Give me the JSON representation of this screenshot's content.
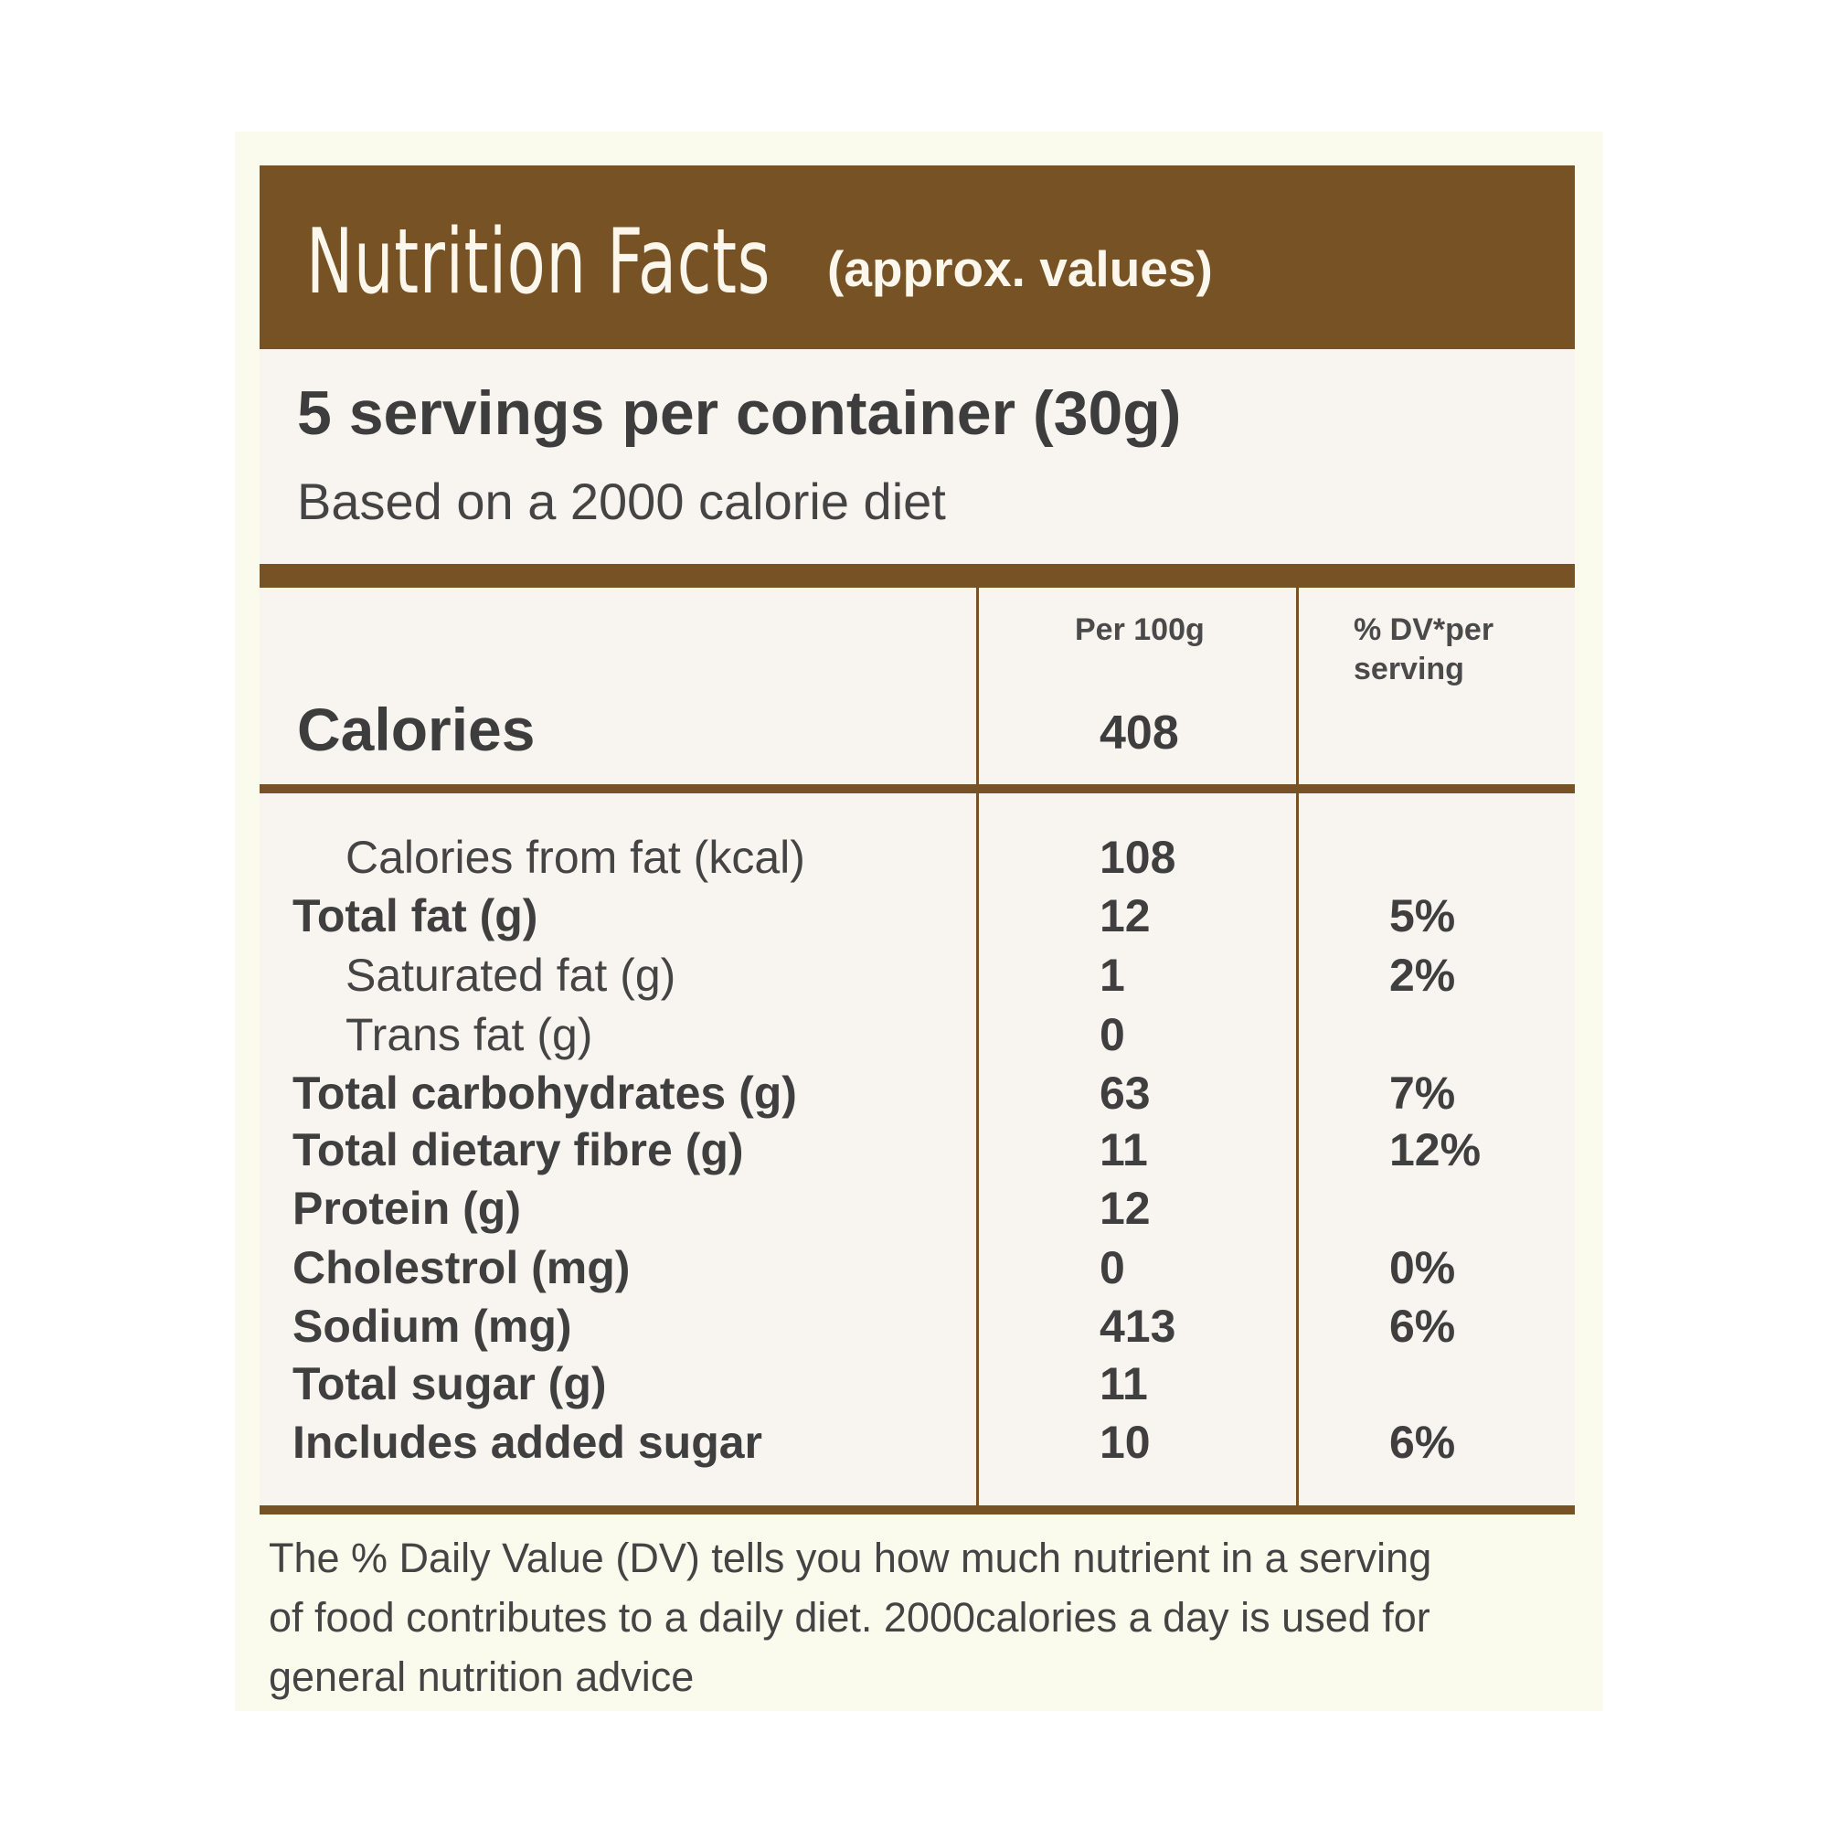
{
  "header": {
    "title": "Nutrition Facts",
    "subtitle": "(approx. values)"
  },
  "servings": "5 servings per container (30g)",
  "basis": "Based on a 2000 calorie diet",
  "columns": {
    "per100g": "Per 100g",
    "dv_line1": "% DV*per",
    "dv_line2": "serving"
  },
  "calories": {
    "label": "Calories",
    "value": "408"
  },
  "rows": [
    {
      "label": "Calories from fat (kcal)",
      "value": "108",
      "dv": "",
      "sub": true
    },
    {
      "label": "Total fat (g)",
      "value": "12",
      "dv": "5%",
      "sub": false
    },
    {
      "label": "Saturated fat (g)",
      "value": "1",
      "dv": "2%",
      "sub": true
    },
    {
      "label": "Trans fat (g)",
      "value": "0",
      "dv": "",
      "sub": true
    },
    {
      "label": "Total carbohydrates (g)",
      "value": "63",
      "dv": "7%",
      "sub": false
    },
    {
      "label": "Total dietary fibre (g)",
      "value": "11",
      "dv": "12%",
      "sub": false
    },
    {
      "label": "Protein (g)",
      "value": "12",
      "dv": "",
      "sub": false
    },
    {
      "label": "Cholestrol (mg)",
      "value": "0",
      "dv": "0%",
      "sub": false
    },
    {
      "label": "Sodium (mg)",
      "value": "413",
      "dv": "6%",
      "sub": false
    },
    {
      "label": "Total sugar (g)",
      "value": "11",
      "dv": "",
      "sub": false
    },
    {
      "label": "Includes added sugar",
      "value": "10",
      "dv": "6%",
      "sub": false
    }
  ],
  "footnote": {
    "line1": "The % Daily Value (DV) tells you how much nutrient in a serving",
    "line2": "of food contributes to a daily diet. 2000calories a day is used for",
    "line3": "general nutrition advice"
  },
  "colors": {
    "brand_brown": "#775224",
    "panel_bg": "#f8f4ef",
    "outer_bg": "#fafaed",
    "title_text": "#fbf7ec"
  }
}
